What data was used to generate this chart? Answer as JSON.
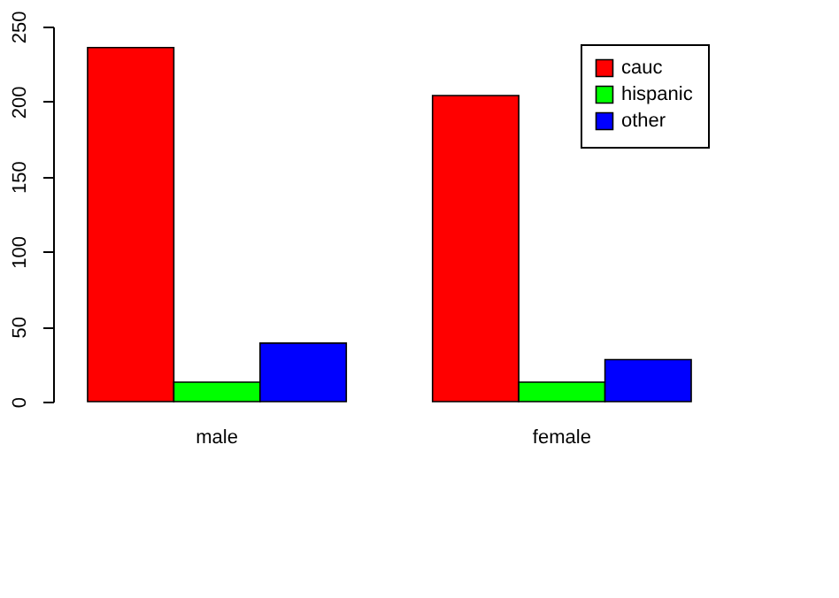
{
  "chart_data": {
    "type": "bar",
    "categories": [
      "male",
      "female"
    ],
    "series": [
      {
        "name": "cauc",
        "color": "#ff0000",
        "values": [
          236,
          204
        ]
      },
      {
        "name": "hispanic",
        "color": "#00ff00",
        "values": [
          13,
          13
        ]
      },
      {
        "name": "other",
        "color": "#0000ff",
        "values": [
          39,
          28
        ]
      }
    ],
    "ylim": [
      0,
      250
    ],
    "yticks": [
      0,
      50,
      100,
      150,
      200,
      250
    ],
    "grid": false,
    "legend": "top right"
  }
}
